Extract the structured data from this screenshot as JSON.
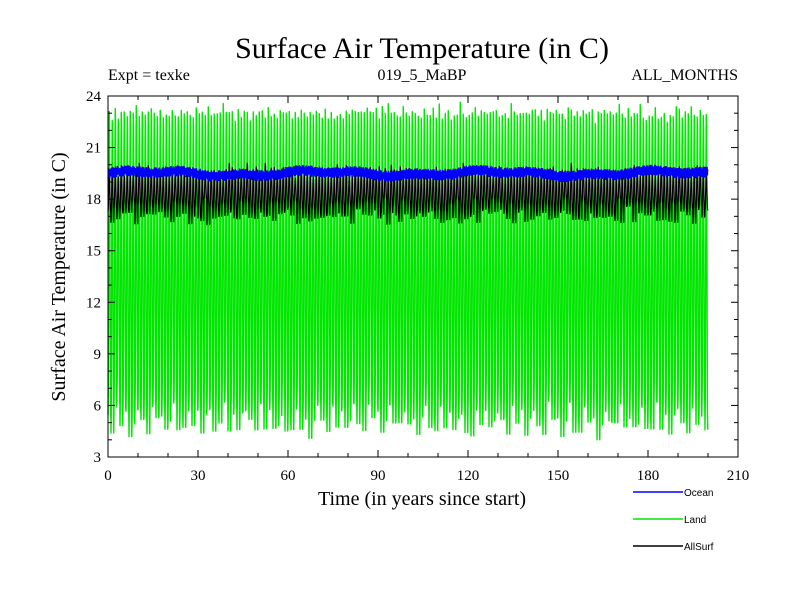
{
  "chart_data": {
    "type": "line",
    "title": "Surface Air Temperature (in C)",
    "subtitle_left": "Expt = texke",
    "subtitle_center": "019_5_MaBP",
    "subtitle_right": "ALL_MONTHS",
    "xlabel": "Time (in years since start)",
    "ylabel": "Surface Air Temperature (in C)",
    "xlim": [
      0,
      210
    ],
    "ylim": [
      3,
      24
    ],
    "xticks": [
      "0",
      "30",
      "60",
      "90",
      "120",
      "150",
      "180",
      "210"
    ],
    "yticks": [
      "3",
      "6",
      "9",
      "12",
      "15",
      "18",
      "21",
      "24"
    ],
    "x_end": 200,
    "series": [
      {
        "name": "Land",
        "color": "#00e600",
        "kind": "monthly-seasonal",
        "summer_peak": [
          23.1,
          22.8,
          23.3,
          22.9,
          23.0,
          23.2,
          22.7,
          23.1,
          22.9,
          23.4,
          23.0,
          22.8
        ],
        "winter_trough": [
          5.4,
          4.6,
          5.9,
          6.3,
          4.9,
          5.6,
          6.0,
          4.4,
          5.2,
          5.8,
          6.1,
          4.8
        ],
        "range_text": "approx. 4 to 23.5 C"
      },
      {
        "name": "Ocean",
        "color": "#0000ff",
        "kind": "monthly-narrow",
        "low": 19.2,
        "high": 19.8,
        "range_text": "approx. 19.2 to 19.8 C"
      },
      {
        "name": "AllSurf",
        "color": "#000000",
        "kind": "monthly-seasonal",
        "summer_peak": [
          19.6,
          19.7,
          19.5,
          19.6,
          19.8,
          19.6
        ],
        "winter_trough": [
          17.3,
          17.0,
          17.6,
          16.9,
          17.4,
          17.2
        ],
        "range_text": "approx. 17 to 19.7 C"
      }
    ],
    "legend_position": "bottom-right"
  }
}
